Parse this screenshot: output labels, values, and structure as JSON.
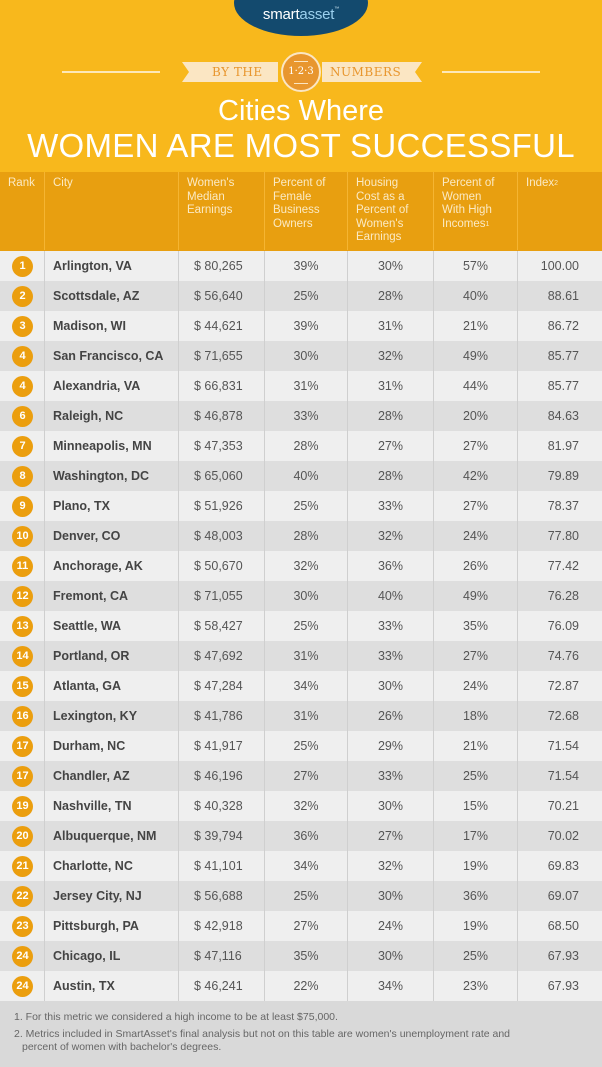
{
  "brand": {
    "logo_part1": "smart",
    "logo_part2": "asset",
    "logo_tm": "™",
    "banner_left": "BY THE",
    "banner_badge": "1·2·3",
    "banner_right": "NUMBERS"
  },
  "title": {
    "line1": "Cities Where",
    "line2": "WOMEN ARE MOST SUCCESSFUL"
  },
  "colors": {
    "background": "#f8b81c",
    "header": "#e89f10",
    "rank_badge": "#eb9e0e",
    "logo_navy": "#134a6e",
    "row_light": "#efefef",
    "row_dark": "#dedede"
  },
  "table": {
    "headers": {
      "rank": "Rank",
      "city": "City",
      "earnings": "Women's Median Earnings",
      "owners": "Percent of Female Business Owners",
      "housing": "Housing Cost as a Percent of Women's Earnings",
      "high_income": "Percent of Women With High Incomes",
      "high_income_sup": "1",
      "index": "Index",
      "index_sup": "2"
    },
    "rows": [
      {
        "rank": "1",
        "city": "Arlington, VA",
        "earnings": "$ 80,265",
        "owners": "39%",
        "housing": "30%",
        "high_income": "57%",
        "index": "100.00"
      },
      {
        "rank": "2",
        "city": "Scottsdale, AZ",
        "earnings": "$ 56,640",
        "owners": "25%",
        "housing": "28%",
        "high_income": "40%",
        "index": "88.61"
      },
      {
        "rank": "3",
        "city": "Madison, WI",
        "earnings": "$ 44,621",
        "owners": "39%",
        "housing": "31%",
        "high_income": "21%",
        "index": "86.72"
      },
      {
        "rank": "4",
        "city": "San Francisco, CA",
        "earnings": "$ 71,655",
        "owners": "30%",
        "housing": "32%",
        "high_income": "49%",
        "index": "85.77"
      },
      {
        "rank": "4",
        "city": "Alexandria, VA",
        "earnings": "$ 66,831",
        "owners": "31%",
        "housing": "31%",
        "high_income": "44%",
        "index": "85.77"
      },
      {
        "rank": "6",
        "city": "Raleigh, NC",
        "earnings": "$ 46,878",
        "owners": "33%",
        "housing": "28%",
        "high_income": "20%",
        "index": "84.63"
      },
      {
        "rank": "7",
        "city": "Minneapolis, MN",
        "earnings": "$ 47,353",
        "owners": "28%",
        "housing": "27%",
        "high_income": "27%",
        "index": "81.97"
      },
      {
        "rank": "8",
        "city": "Washington, DC",
        "earnings": "$ 65,060",
        "owners": "40%",
        "housing": "28%",
        "high_income": "42%",
        "index": "79.89"
      },
      {
        "rank": "9",
        "city": "Plano, TX",
        "earnings": "$ 51,926",
        "owners": "25%",
        "housing": "33%",
        "high_income": "27%",
        "index": "78.37"
      },
      {
        "rank": "10",
        "city": "Denver, CO",
        "earnings": "$ 48,003",
        "owners": "28%",
        "housing": "32%",
        "high_income": "24%",
        "index": "77.80"
      },
      {
        "rank": "11",
        "city": "Anchorage, AK",
        "earnings": "$ 50,670",
        "owners": "32%",
        "housing": "36%",
        "high_income": "26%",
        "index": "77.42"
      },
      {
        "rank": "12",
        "city": "Fremont, CA",
        "earnings": "$ 71,055",
        "owners": "30%",
        "housing": "40%",
        "high_income": "49%",
        "index": "76.28"
      },
      {
        "rank": "13",
        "city": "Seattle, WA",
        "earnings": "$ 58,427",
        "owners": "25%",
        "housing": "33%",
        "high_income": "35%",
        "index": "76.09"
      },
      {
        "rank": "14",
        "city": "Portland, OR",
        "earnings": "$ 47,692",
        "owners": "31%",
        "housing": "33%",
        "high_income": "27%",
        "index": "74.76"
      },
      {
        "rank": "15",
        "city": "Atlanta, GA",
        "earnings": "$ 47,284",
        "owners": "34%",
        "housing": "30%",
        "high_income": "24%",
        "index": "72.87"
      },
      {
        "rank": "16",
        "city": "Lexington, KY",
        "earnings": "$ 41,786",
        "owners": "31%",
        "housing": "26%",
        "high_income": "18%",
        "index": "72.68"
      },
      {
        "rank": "17",
        "city": "Durham, NC",
        "earnings": "$ 41,917",
        "owners": "25%",
        "housing": "29%",
        "high_income": "21%",
        "index": "71.54"
      },
      {
        "rank": "17",
        "city": "Chandler, AZ",
        "earnings": "$ 46,196",
        "owners": "27%",
        "housing": "33%",
        "high_income": "25%",
        "index": "71.54"
      },
      {
        "rank": "19",
        "city": "Nashville, TN",
        "earnings": "$ 40,328",
        "owners": "32%",
        "housing": "30%",
        "high_income": "15%",
        "index": "70.21"
      },
      {
        "rank": "20",
        "city": "Albuquerque, NM",
        "earnings": "$ 39,794",
        "owners": "36%",
        "housing": "27%",
        "high_income": "17%",
        "index": "70.02"
      },
      {
        "rank": "21",
        "city": "Charlotte, NC",
        "earnings": "$ 41,101",
        "owners": "34%",
        "housing": "32%",
        "high_income": "19%",
        "index": "69.83"
      },
      {
        "rank": "22",
        "city": "Jersey City, NJ",
        "earnings": "$ 56,688",
        "owners": "25%",
        "housing": "30%",
        "high_income": "36%",
        "index": "69.07"
      },
      {
        "rank": "23",
        "city": "Pittsburgh, PA",
        "earnings": "$ 42,918",
        "owners": "27%",
        "housing": "24%",
        "high_income": "19%",
        "index": "68.50"
      },
      {
        "rank": "24",
        "city": "Chicago, IL",
        "earnings": "$ 47,116",
        "owners": "35%",
        "housing": "30%",
        "high_income": "25%",
        "index": "67.93"
      },
      {
        "rank": "24",
        "city": "Austin, TX",
        "earnings": "$ 46,241",
        "owners": "22%",
        "housing": "34%",
        "high_income": "23%",
        "index": "67.93"
      }
    ]
  },
  "footnotes": {
    "note1": "1. For this metric we considered a high income to be at least $75,000.",
    "note2_line1": "2. Metrics included in SmartAsset's final analysis but not on this table are women's unemployment rate and",
    "note2_line2": "percent of women with bachelor's degrees."
  },
  "chart_data": {
    "type": "table",
    "title": "Cities Where Women Are Most Successful",
    "subtitle": "By the 1·2·3 Numbers — SmartAsset",
    "columns": [
      "Rank",
      "City",
      "Women's Median Earnings",
      "Percent of Female Business Owners",
      "Housing Cost as a Percent of Women's Earnings",
      "Percent of Women With High Incomes",
      "Index"
    ],
    "rows": [
      [
        1,
        "Arlington, VA",
        80265,
        39,
        30,
        57,
        100.0
      ],
      [
        2,
        "Scottsdale, AZ",
        56640,
        25,
        28,
        40,
        88.61
      ],
      [
        3,
        "Madison, WI",
        44621,
        39,
        31,
        21,
        86.72
      ],
      [
        4,
        "San Francisco, CA",
        71655,
        30,
        32,
        49,
        85.77
      ],
      [
        4,
        "Alexandria, VA",
        66831,
        31,
        31,
        44,
        85.77
      ],
      [
        6,
        "Raleigh, NC",
        46878,
        33,
        28,
        20,
        84.63
      ],
      [
        7,
        "Minneapolis, MN",
        47353,
        28,
        27,
        27,
        81.97
      ],
      [
        8,
        "Washington, DC",
        65060,
        40,
        28,
        42,
        79.89
      ],
      [
        9,
        "Plano, TX",
        51926,
        25,
        33,
        27,
        78.37
      ],
      [
        10,
        "Denver, CO",
        48003,
        28,
        32,
        24,
        77.8
      ],
      [
        11,
        "Anchorage, AK",
        50670,
        32,
        36,
        26,
        77.42
      ],
      [
        12,
        "Fremont, CA",
        71055,
        30,
        40,
        49,
        76.28
      ],
      [
        13,
        "Seattle, WA",
        58427,
        25,
        33,
        35,
        76.09
      ],
      [
        14,
        "Portland, OR",
        47692,
        31,
        33,
        27,
        74.76
      ],
      [
        15,
        "Atlanta, GA",
        47284,
        34,
        30,
        24,
        72.87
      ],
      [
        16,
        "Lexington, KY",
        41786,
        31,
        26,
        18,
        72.68
      ],
      [
        17,
        "Durham, NC",
        41917,
        25,
        29,
        21,
        71.54
      ],
      [
        17,
        "Chandler, AZ",
        46196,
        27,
        33,
        25,
        71.54
      ],
      [
        19,
        "Nashville, TN",
        40328,
        32,
        30,
        15,
        70.21
      ],
      [
        20,
        "Albuquerque, NM",
        39794,
        36,
        27,
        17,
        70.02
      ],
      [
        21,
        "Charlotte, NC",
        41101,
        34,
        32,
        19,
        69.83
      ],
      [
        22,
        "Jersey City, NJ",
        56688,
        25,
        30,
        36,
        69.07
      ],
      [
        23,
        "Pittsburgh, PA",
        42918,
        27,
        24,
        19,
        68.5
      ],
      [
        24,
        "Chicago, IL",
        47116,
        35,
        30,
        25,
        67.93
      ],
      [
        24,
        "Austin, TX",
        46241,
        22,
        34,
        23,
        67.93
      ]
    ],
    "footnotes": [
      "For this metric we considered a high income to be at least $75,000.",
      "Metrics included in SmartAsset's final analysis but not on this table are women's unemployment rate and percent of women with bachelor's degrees."
    ]
  }
}
